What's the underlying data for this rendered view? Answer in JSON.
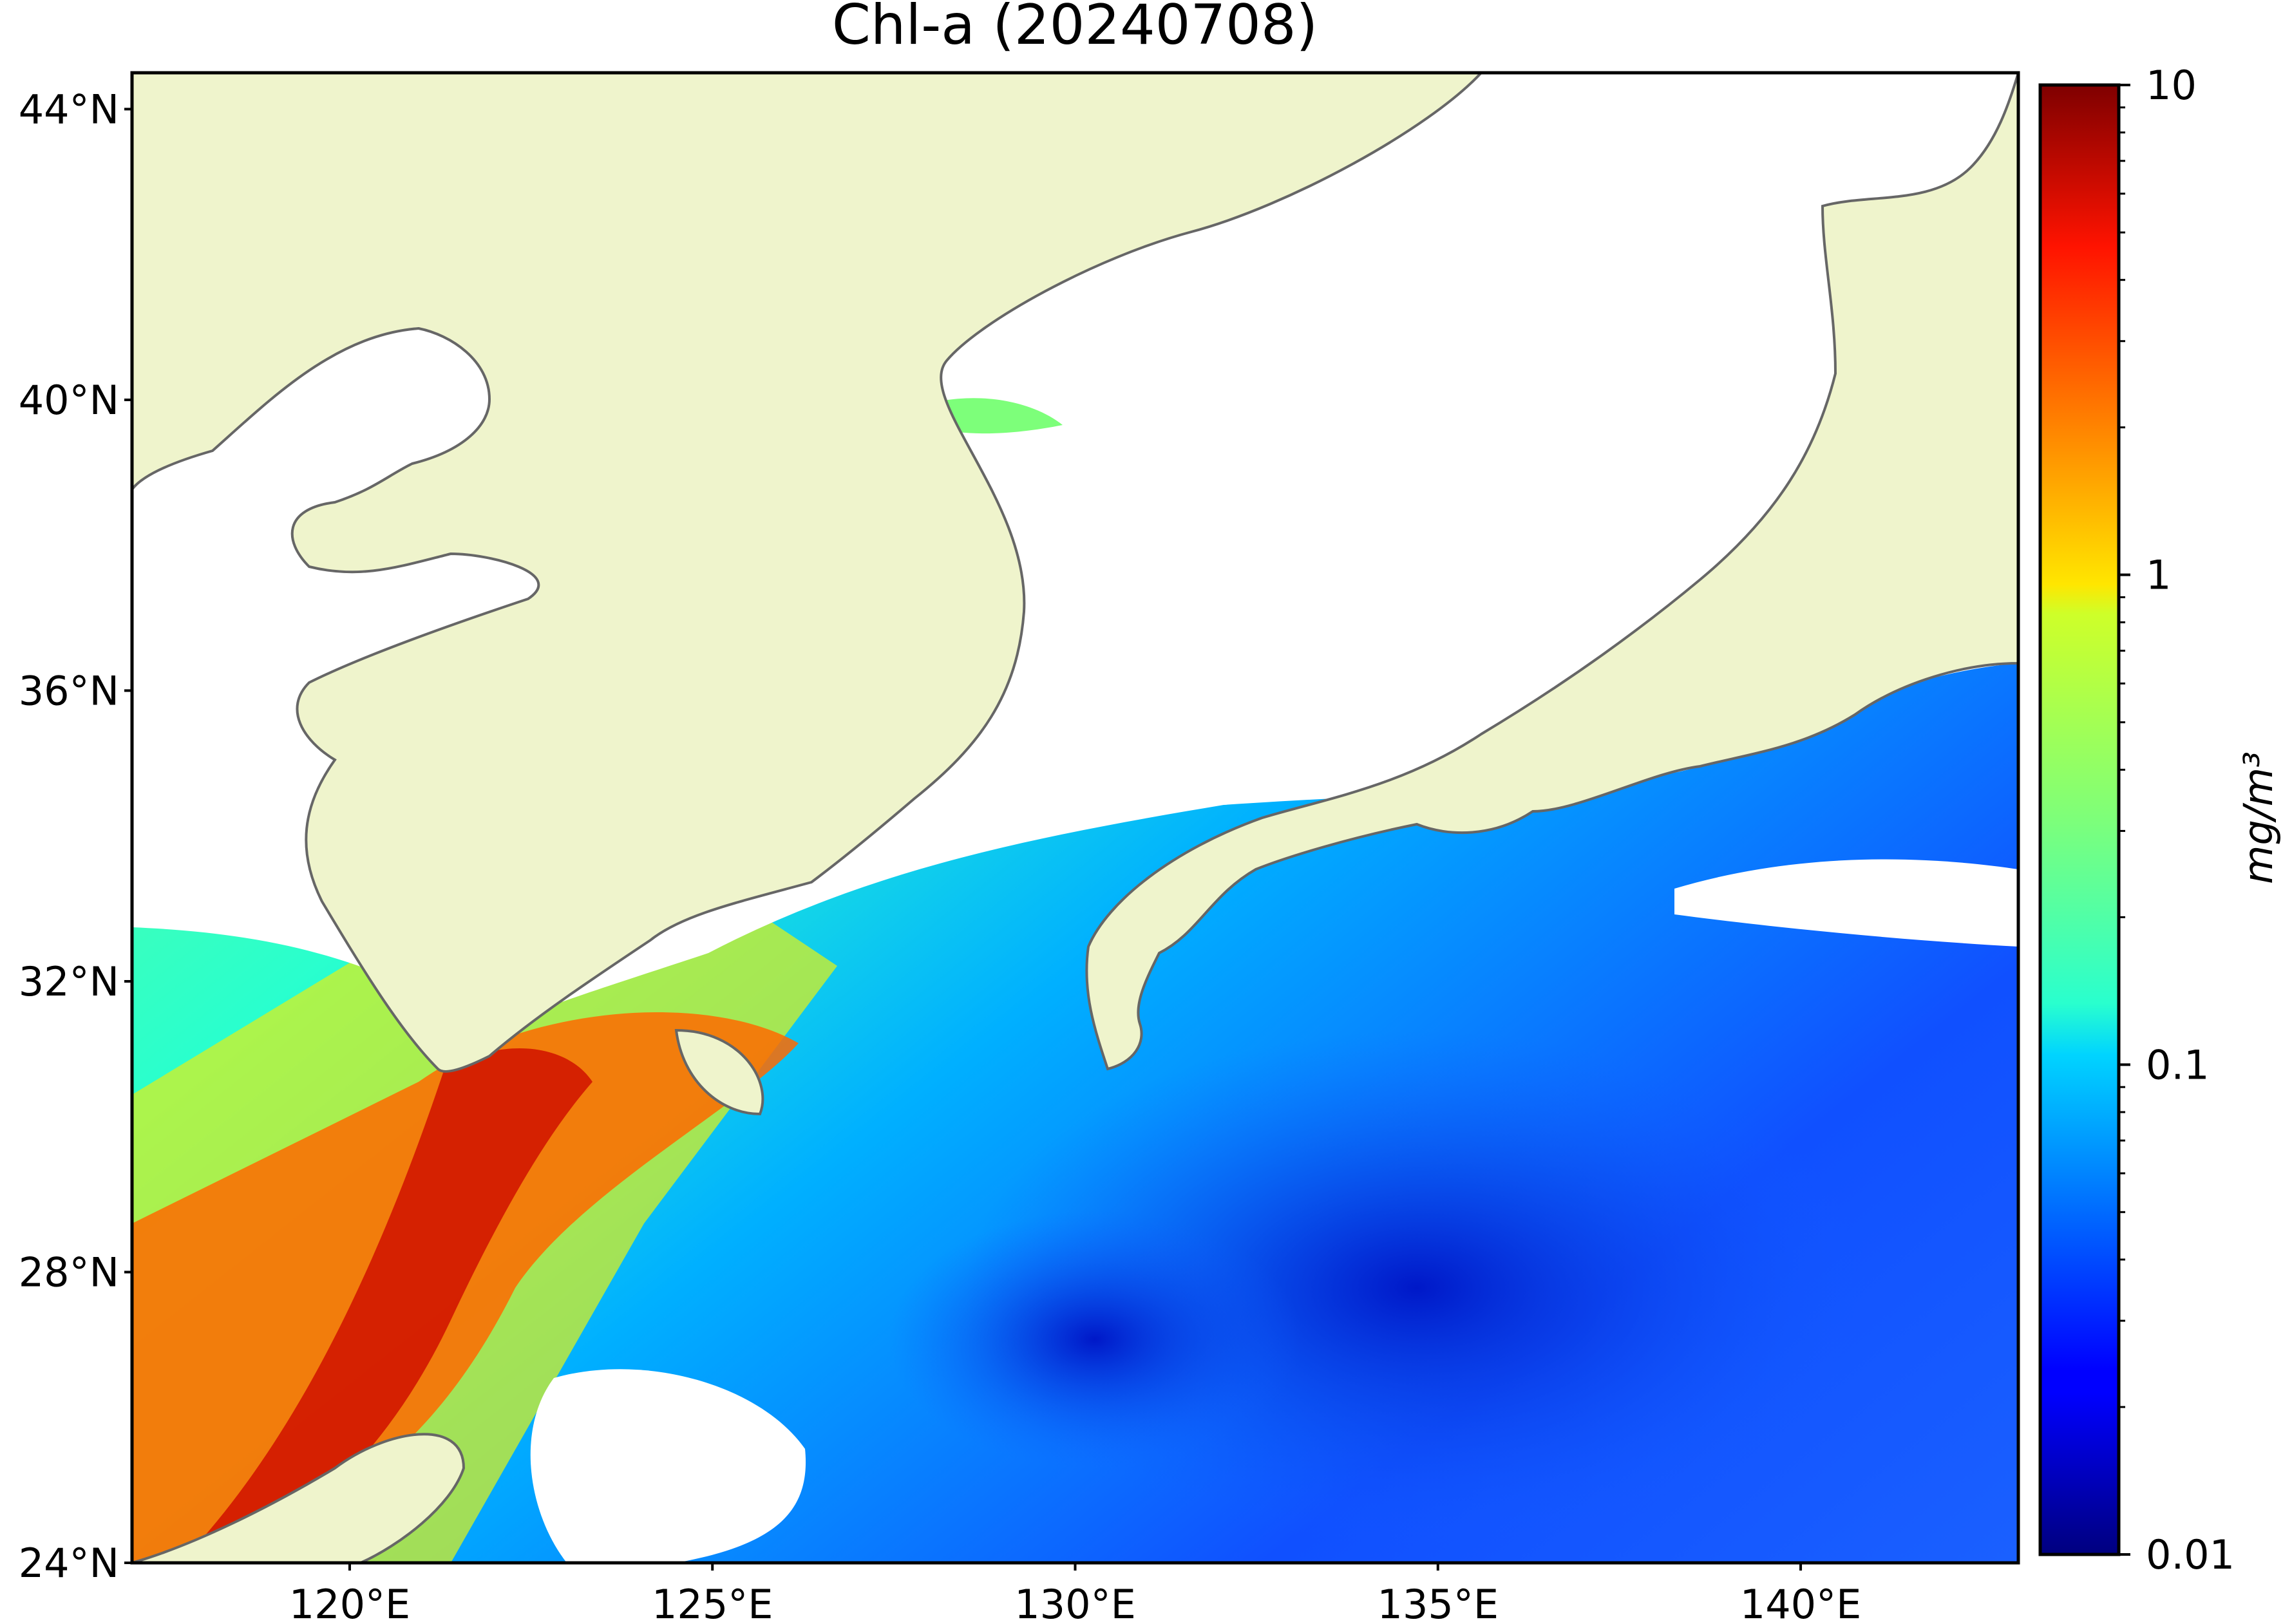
{
  "title": "Chl-a (20240708)",
  "map": {
    "lon_range": [
      117,
      143
    ],
    "lat_range": [
      24,
      44.5
    ],
    "land_color": "#eff4cc",
    "coast_color": "#666666",
    "cloud_color": "#ffffff",
    "frame_color": "#000000"
  },
  "axes": {
    "lat_ticks": [
      {
        "value": 44,
        "label": "44°N"
      },
      {
        "value": 40,
        "label": "40°N"
      },
      {
        "value": 36,
        "label": "36°N"
      },
      {
        "value": 32,
        "label": "32°N"
      },
      {
        "value": 28,
        "label": "28°N"
      },
      {
        "value": 24,
        "label": "24°N"
      }
    ],
    "lon_ticks": [
      {
        "value": 120,
        "label": "120°E"
      },
      {
        "value": 125,
        "label": "125°E"
      },
      {
        "value": 130,
        "label": "130°E"
      },
      {
        "value": 135,
        "label": "135°E"
      },
      {
        "value": 140,
        "label": "140°E"
      }
    ]
  },
  "colorbar": {
    "colormap": "jet",
    "scale": "log",
    "range": [
      0.01,
      10
    ],
    "ticks": [
      {
        "value": 10,
        "label": "10"
      },
      {
        "value": 1,
        "label": "1"
      },
      {
        "value": 0.1,
        "label": "0.1"
      },
      {
        "value": 0.01,
        "label": "0.01"
      }
    ],
    "unit": "mg/m³"
  }
}
